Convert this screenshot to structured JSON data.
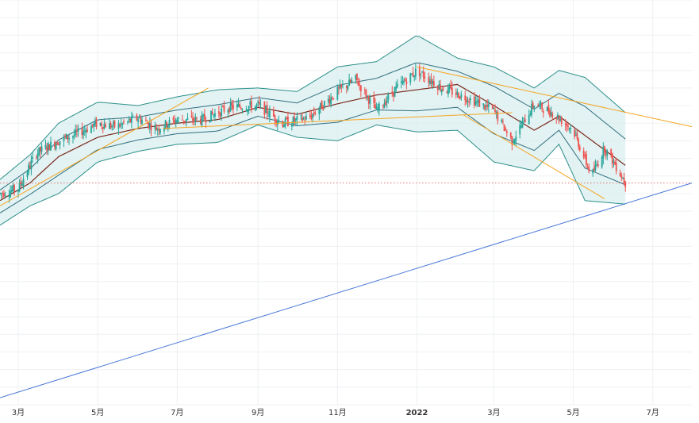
{
  "colors": {
    "background": "#ffffff",
    "grid": "#eef0f3",
    "band_fill": "#d9eeee",
    "band_line": "#2a8f8a",
    "inner_band_line": "#2f6f80",
    "basis_line": "#7a2a1e",
    "candle_up": "#26a69a",
    "candle_down": "#ef5350",
    "trend_orange": "#f5a623",
    "trend_blue": "#4a78d8",
    "last_price_line": "#e57373"
  },
  "chart_data": {
    "type": "candlestick",
    "title": "",
    "xlabel": "",
    "ylabel": "",
    "x_range": [
      "2021-02-15",
      "2022-07-31"
    ],
    "y_range": [
      32,
      55
    ],
    "grid": true,
    "x_ticks": [
      {
        "label": "3月",
        "date": "2021-03-01",
        "bold": false
      },
      {
        "label": "5月",
        "date": "2021-05-01",
        "bold": false
      },
      {
        "label": "7月",
        "date": "2021-07-01",
        "bold": false
      },
      {
        "label": "9月",
        "date": "2021-09-01",
        "bold": false
      },
      {
        "label": "11月",
        "date": "2021-11-01",
        "bold": false
      },
      {
        "label": "2022",
        "date": "2022-01-01",
        "bold": true
      },
      {
        "label": "3月",
        "date": "2022-03-01",
        "bold": false
      },
      {
        "label": "5月",
        "date": "2022-05-01",
        "bold": false
      },
      {
        "label": "7月",
        "date": "2022-07-01",
        "bold": false
      }
    ],
    "price_path": [
      [
        "2021-02-15",
        44.0
      ],
      [
        "2021-03-01",
        44.3
      ],
      [
        "2021-03-15",
        46.3
      ],
      [
        "2021-04-01",
        47.0
      ],
      [
        "2021-04-15",
        47.4
      ],
      [
        "2021-05-01",
        48.0
      ],
      [
        "2021-05-15",
        47.8
      ],
      [
        "2021-06-01",
        48.3
      ],
      [
        "2021-06-15",
        47.7
      ],
      [
        "2021-07-01",
        48.2
      ],
      [
        "2021-07-20",
        48.2
      ],
      [
        "2021-08-10",
        48.9
      ],
      [
        "2021-09-01",
        49.0
      ],
      [
        "2021-09-20",
        48.0
      ],
      [
        "2021-10-10",
        48.3
      ],
      [
        "2021-11-01",
        49.8
      ],
      [
        "2021-11-15",
        50.5
      ],
      [
        "2021-12-01",
        48.7
      ],
      [
        "2021-12-15",
        49.9
      ],
      [
        "2022-01-01",
        51.0
      ],
      [
        "2022-01-20",
        50.0
      ],
      [
        "2022-02-10",
        49.4
      ],
      [
        "2022-03-01",
        48.7
      ],
      [
        "2022-03-15",
        47.0
      ],
      [
        "2022-04-01",
        49.1
      ],
      [
        "2022-04-15",
        48.6
      ],
      [
        "2022-05-01",
        47.6
      ],
      [
        "2022-05-15",
        45.0
      ],
      [
        "2022-05-25",
        46.6
      ],
      [
        "2022-06-05",
        45.3
      ],
      [
        "2022-06-10",
        44.6
      ]
    ],
    "bollinger": {
      "basis": [
        [
          "2021-02-15",
          43.6
        ],
        [
          "2021-03-10",
          44.6
        ],
        [
          "2021-04-01",
          46.1
        ],
        [
          "2021-05-01",
          47.2
        ],
        [
          "2021-06-01",
          47.7
        ],
        [
          "2021-07-01",
          48.0
        ],
        [
          "2021-08-01",
          48.2
        ],
        [
          "2021-09-01",
          48.9
        ],
        [
          "2021-10-01",
          48.5
        ],
        [
          "2021-11-01",
          49.1
        ],
        [
          "2021-12-01",
          49.6
        ],
        [
          "2022-01-01",
          49.9
        ],
        [
          "2022-02-01",
          50.2
        ],
        [
          "2022-03-01",
          49.0
        ],
        [
          "2022-04-01",
          47.6
        ],
        [
          "2022-04-20",
          48.4
        ],
        [
          "2022-05-10",
          47.3
        ],
        [
          "2022-06-10",
          45.6
        ]
      ],
      "upper_outer": [
        [
          "2021-02-15",
          44.8
        ],
        [
          "2021-03-10",
          46.2
        ],
        [
          "2021-04-01",
          48.0
        ],
        [
          "2021-05-01",
          49.2
        ],
        [
          "2021-06-01",
          49.0
        ],
        [
          "2021-07-01",
          49.5
        ],
        [
          "2021-08-01",
          49.9
        ],
        [
          "2021-09-01",
          50.0
        ],
        [
          "2021-10-01",
          49.8
        ],
        [
          "2021-11-01",
          51.2
        ],
        [
          "2021-12-01",
          51.5
        ],
        [
          "2022-01-01",
          53.0
        ],
        [
          "2022-02-01",
          51.7
        ],
        [
          "2022-03-01",
          51.2
        ],
        [
          "2022-04-01",
          50.0
        ],
        [
          "2022-04-20",
          51.0
        ],
        [
          "2022-05-10",
          50.6
        ],
        [
          "2022-06-10",
          48.6
        ]
      ],
      "lower_outer": [
        [
          "2021-02-15",
          42.2
        ],
        [
          "2021-03-10",
          43.3
        ],
        [
          "2021-04-01",
          44.0
        ],
        [
          "2021-05-01",
          45.8
        ],
        [
          "2021-06-01",
          46.4
        ],
        [
          "2021-07-01",
          46.8
        ],
        [
          "2021-08-01",
          46.9
        ],
        [
          "2021-09-01",
          47.9
        ],
        [
          "2021-10-01",
          47.2
        ],
        [
          "2021-11-01",
          47.0
        ],
        [
          "2021-12-01",
          47.9
        ],
        [
          "2022-01-01",
          47.5
        ],
        [
          "2022-02-01",
          47.6
        ],
        [
          "2022-03-01",
          45.8
        ],
        [
          "2022-04-01",
          45.3
        ],
        [
          "2022-04-20",
          46.8
        ],
        [
          "2022-05-10",
          43.6
        ],
        [
          "2022-06-10",
          43.4
        ]
      ]
    },
    "trendlines": [
      {
        "color": "orange",
        "from": [
          "2021-02-15",
          43.3
        ],
        "to": [
          "2021-07-25",
          50.0
        ]
      },
      {
        "color": "orange",
        "from": [
          "2021-06-20",
          47.7
        ],
        "to": [
          "2022-03-15",
          48.6
        ]
      },
      {
        "color": "orange",
        "from": [
          "2022-01-01",
          51.2
        ],
        "to": [
          "2022-07-31",
          47.8
        ]
      },
      {
        "color": "orange",
        "from": [
          "2022-02-05",
          48.5
        ],
        "to": [
          "2022-05-25",
          43.7
        ]
      },
      {
        "color": "blue",
        "from": [
          "2021-02-15",
          32.4
        ],
        "to": [
          "2022-07-31",
          44.6
        ]
      }
    ],
    "last_price": 44.6
  }
}
